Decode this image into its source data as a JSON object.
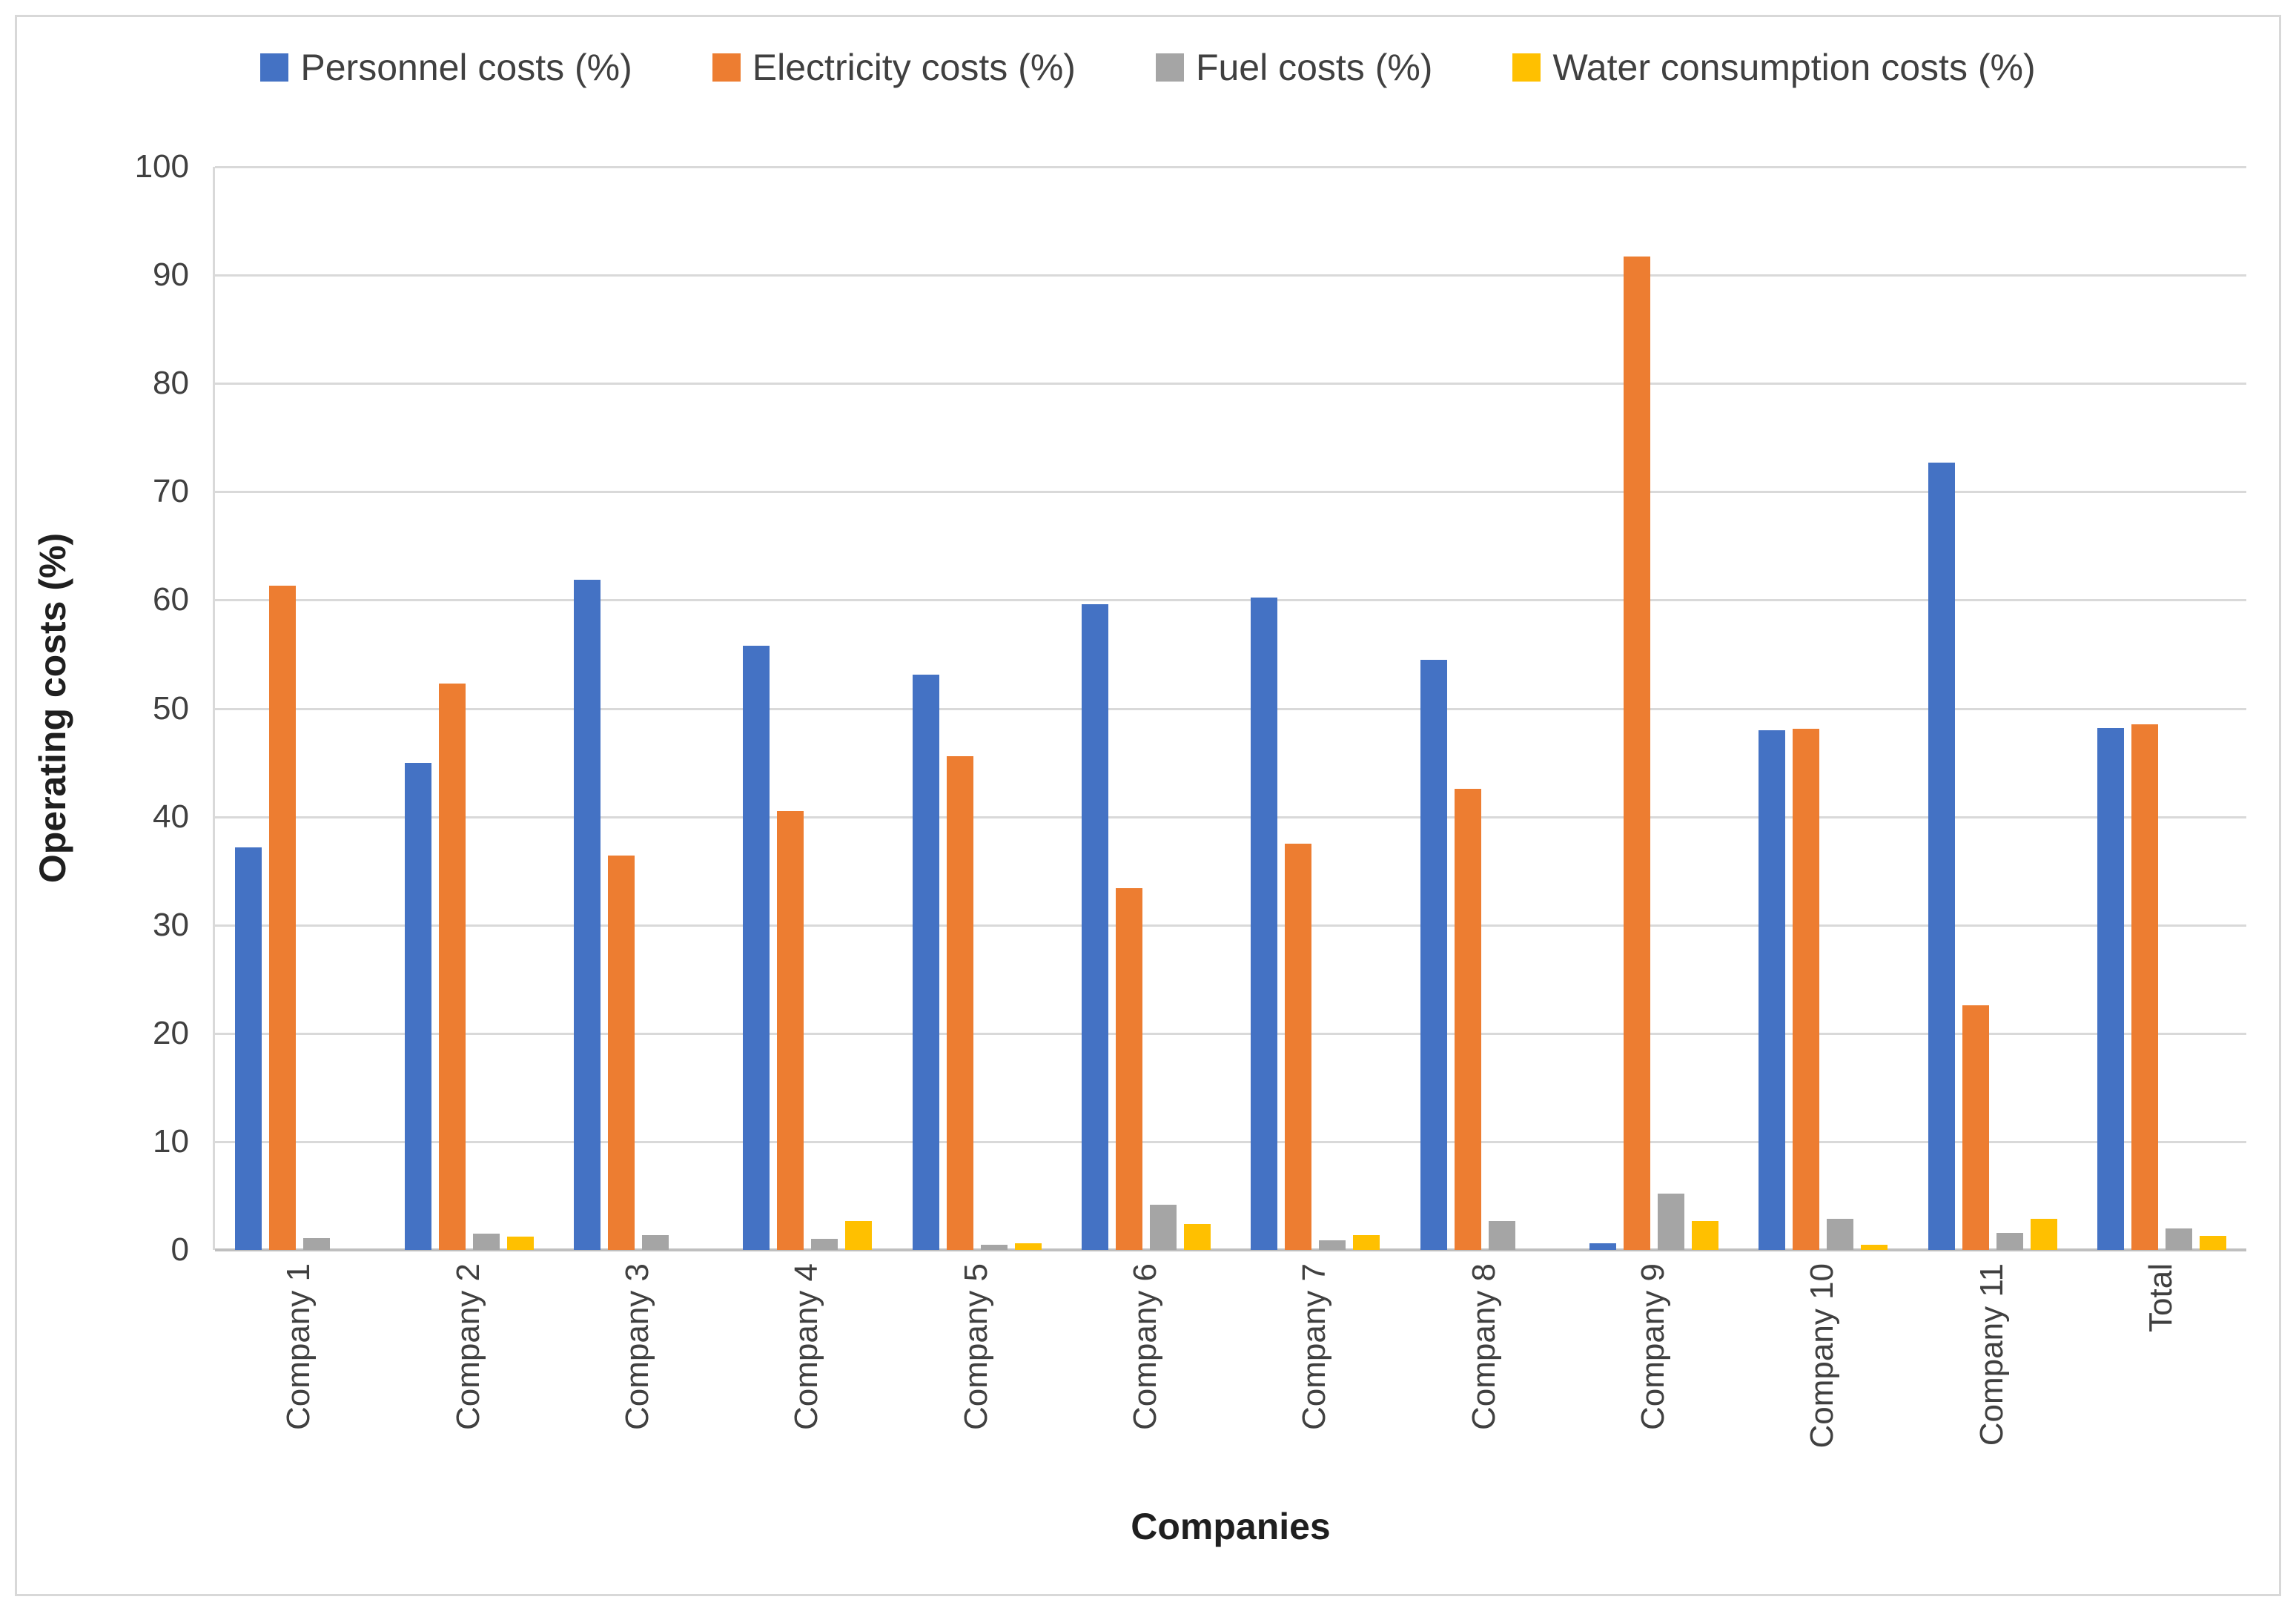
{
  "page": {
    "background": "#FFFFFF",
    "border_color": "#D8D8D8"
  },
  "chart_data": {
    "type": "bar",
    "title": "",
    "categories": [
      "Company 1",
      "Company 2",
      "Company 3",
      "Company 4",
      "Company 5",
      "Company 6",
      "Company 7",
      "Company 8",
      "Company 9",
      "Company 10",
      "Company 11",
      "Total"
    ],
    "series": [
      {
        "name": "Personnel costs (%)",
        "color": "#4472C4",
        "values": [
          37.2,
          45.0,
          61.9,
          55.8,
          53.1,
          59.6,
          60.2,
          54.5,
          0.6,
          48.0,
          72.7,
          48.2
        ]
      },
      {
        "name": "Electricity costs (%)",
        "color": "#ED7D31",
        "values": [
          61.3,
          52.3,
          36.4,
          40.5,
          45.6,
          33.4,
          37.5,
          42.6,
          91.7,
          48.1,
          22.6,
          48.5
        ]
      },
      {
        "name": "Fuel costs (%)",
        "color": "#A5A5A5",
        "values": [
          1.1,
          1.5,
          1.4,
          1.0,
          0.5,
          4.2,
          0.9,
          2.7,
          5.2,
          2.9,
          1.6,
          2.0
        ]
      },
      {
        "name": "Water consumption costs (%)",
        "color": "#FFC000",
        "values": [
          0,
          1.2,
          0,
          2.7,
          0.6,
          2.4,
          1.4,
          0,
          2.7,
          0.5,
          2.9,
          1.3
        ]
      }
    ],
    "xlabel": "Companies",
    "ylabel": "Operating costs (%)",
    "ylim": [
      0,
      100
    ],
    "ytick_step": 10,
    "yticks": [
      0,
      10,
      20,
      30,
      40,
      50,
      60,
      70,
      80,
      90,
      100
    ],
    "legend_position": "top",
    "grid": "horizontal",
    "gridline_color": "#D9D9D9",
    "axis_line_color": "#BFBFBF",
    "tick_text_color": "#404040",
    "axis_title_color": "#1F1F1F"
  }
}
